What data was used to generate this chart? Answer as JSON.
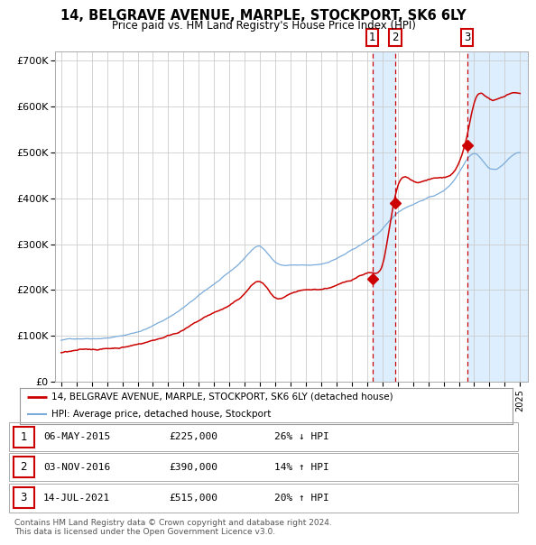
{
  "title": "14, BELGRAVE AVENUE, MARPLE, STOCKPORT, SK6 6LY",
  "subtitle": "Price paid vs. HM Land Registry's House Price Index (HPI)",
  "xlim": [
    1994.6,
    2025.5
  ],
  "ylim": [
    0,
    720000
  ],
  "yticks": [
    0,
    100000,
    200000,
    300000,
    400000,
    500000,
    600000,
    700000
  ],
  "ytick_labels": [
    "£0",
    "£100K",
    "£200K",
    "£300K",
    "£400K",
    "£500K",
    "£600K",
    "£700K"
  ],
  "sale_dates": [
    2015.344,
    2016.84,
    2021.535
  ],
  "sale_prices": [
    225000,
    390000,
    515000
  ],
  "sale_labels": [
    "1",
    "2",
    "3"
  ],
  "sale_info": [
    {
      "label": "1",
      "date": "06-MAY-2015",
      "price": "£225,000",
      "hpi": "26% ↓ HPI"
    },
    {
      "label": "2",
      "date": "03-NOV-2016",
      "price": "£390,000",
      "hpi": "14% ↑ HPI"
    },
    {
      "label": "3",
      "date": "14-JUL-2021",
      "price": "£515,000",
      "hpi": "20% ↑ HPI"
    }
  ],
  "legend_red": "14, BELGRAVE AVENUE, MARPLE, STOCKPORT, SK6 6LY (detached house)",
  "legend_blue": "HPI: Average price, detached house, Stockport",
  "footer": "Contains HM Land Registry data © Crown copyright and database right 2024.\nThis data is licensed under the Open Government Licence v3.0.",
  "hpi_color": "#7aabda",
  "price_color": "#cc0000",
  "shade_color": "#ddeeff",
  "bg_color": "#ffffff",
  "grid_color": "#cccccc"
}
